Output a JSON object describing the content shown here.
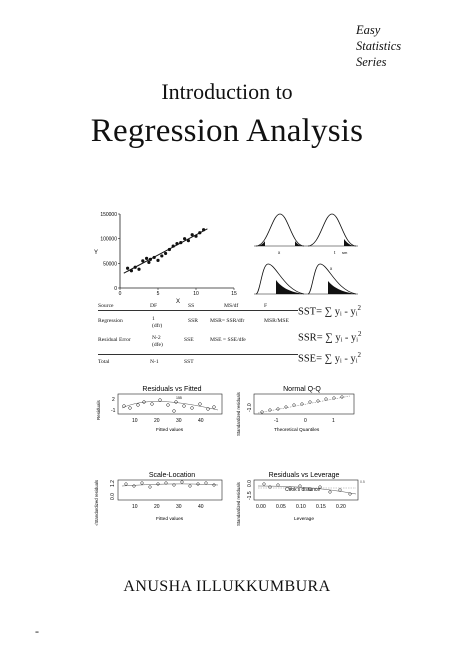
{
  "series": [
    "Easy",
    "Statistics",
    "Series"
  ],
  "title_line1": "Introduction to",
  "title_line2": "Regression Analysis",
  "author": "ANUSHA ILLUKKUMBURA",
  "footer_mark": "-",
  "scatter": {
    "y_ticks": [
      "150000",
      "100000",
      "50000",
      "0"
    ],
    "x_ticks": [
      "0",
      "5",
      "10",
      "15"
    ],
    "xlabel": "X",
    "ylabel": "Y",
    "points": [
      [
        1,
        40000
      ],
      [
        1.5,
        35000
      ],
      [
        2,
        42000
      ],
      [
        2.5,
        38000
      ],
      [
        3,
        55000
      ],
      [
        3.5,
        60000
      ],
      [
        3.8,
        52000
      ],
      [
        4,
        58000
      ],
      [
        4.5,
        62000
      ],
      [
        5,
        56000
      ],
      [
        5.5,
        65000
      ],
      [
        6,
        70000
      ],
      [
        6.5,
        78000
      ],
      [
        7,
        85000
      ],
      [
        7.5,
        90000
      ],
      [
        8,
        92000
      ],
      [
        8.5,
        100000
      ],
      [
        9,
        96000
      ],
      [
        9.5,
        108000
      ],
      [
        10,
        105000
      ],
      [
        10.5,
        112000
      ],
      [
        11,
        118000
      ]
    ],
    "fit": [
      [
        0.5,
        30000
      ],
      [
        11.5,
        120000
      ]
    ]
  },
  "dist_labels": [
    "x",
    "t",
    "sm",
    "x"
  ],
  "anova": {
    "headers": [
      "Source",
      "DF",
      "SS",
      "MS/df",
      "F"
    ],
    "rows": [
      [
        "Regression",
        "1",
        "SSR",
        "MSR=  SSR/dfr",
        "MSR/MSE"
      ],
      [
        "Residual Error",
        "N-2",
        "SSE",
        "MSE = SSE/dfe",
        ""
      ],
      [
        "Total",
        "N-1",
        "SST",
        "",
        ""
      ]
    ],
    "row_sub": [
      "(dfr)",
      "(dfe)"
    ]
  },
  "formulas": [
    {
      "lhs": "SST",
      "body": "= ∑  yᵢ -  yᵢ",
      "exp": "2"
    },
    {
      "lhs": "SSR",
      "body": "= ∑  yᵢ -  yᵢ",
      "exp": "2"
    },
    {
      "lhs": "SSE",
      "body": "= ∑  yᵢ -  yᵢ",
      "exp": "2"
    }
  ],
  "diag": {
    "rvf": {
      "title": "Residuals vs Fitted",
      "ylabel": "Residuals",
      "xlabel": "Fitted values",
      "x_ticks": [
        "10",
        "20",
        "30",
        "40"
      ],
      "y_ticks": [
        "2",
        "-1"
      ],
      "note": "155"
    },
    "qq": {
      "title": "Normal Q-Q",
      "ylabel": "Standardized residuals",
      "xlabel": "Theoretical Quantiles",
      "x_ticks": [
        "-1",
        "0",
        "1"
      ],
      "y_ticks": [
        "-1.0"
      ]
    },
    "sl": {
      "title": "Scale-Location",
      "ylabel": "√Standardized residuals",
      "xlabel": "Fitted values",
      "x_ticks": [
        "10",
        "20",
        "30",
        "40"
      ],
      "y_ticks": [
        "0.0",
        "1.2"
      ]
    },
    "rvl": {
      "title": "Residuals vs Leverage",
      "ylabel": "Standardized residuals",
      "xlabel": "Leverage",
      "x_ticks": [
        "0.00",
        "0.05",
        "0.10",
        "0.15",
        "0.20"
      ],
      "y_ticks": [
        "-1.5",
        "0.0"
      ],
      "note": "Cook's distance",
      "side": "0.5"
    }
  }
}
